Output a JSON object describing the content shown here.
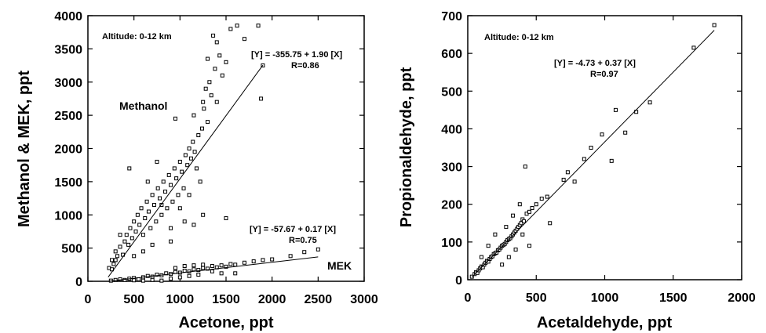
{
  "chart_data": [
    {
      "type": "scatter",
      "xlabel": "Acetone, ppt",
      "ylabel": "Methanol & MEK, ppt",
      "xlim": [
        0,
        3000
      ],
      "ylim": [
        0,
        4000
      ],
      "xticks": [
        0,
        500,
        1000,
        1500,
        2000,
        2500,
        3000
      ],
      "yticks": [
        0,
        500,
        1000,
        1500,
        2000,
        2500,
        3000,
        3500,
        4000
      ],
      "annotation": "Altitude: 0-12 km",
      "series": [
        {
          "name": "Methanol",
          "equation": "[Y] = -355.75 + 1.90 [X]",
          "r_label": "R=0.86",
          "fit": {
            "intercept": -355.75,
            "slope": 1.9,
            "x_range": [
              220,
              1900
            ]
          },
          "points": [
            [
              230,
              200
            ],
            [
              260,
              320
            ],
            [
              280,
              260
            ],
            [
              300,
              450
            ],
            [
              320,
              380
            ],
            [
              350,
              520
            ],
            [
              380,
              400
            ],
            [
              400,
              600
            ],
            [
              420,
              700
            ],
            [
              440,
              550
            ],
            [
              460,
              800
            ],
            [
              480,
              650
            ],
            [
              500,
              900
            ],
            [
              520,
              750
            ],
            [
              540,
              1000
            ],
            [
              560,
              850
            ],
            [
              580,
              1100
            ],
            [
              600,
              700
            ],
            [
              620,
              950
            ],
            [
              640,
              1200
            ],
            [
              660,
              1050
            ],
            [
              680,
              800
            ],
            [
              700,
              1300
            ],
            [
              720,
              1150
            ],
            [
              740,
              900
            ],
            [
              760,
              1400
            ],
            [
              780,
              1250
            ],
            [
              800,
              1000
            ],
            [
              820,
              1500
            ],
            [
              840,
              1350
            ],
            [
              860,
              1100
            ],
            [
              880,
              1600
            ],
            [
              900,
              1450
            ],
            [
              920,
              1200
            ],
            [
              940,
              1700
            ],
            [
              960,
              1550
            ],
            [
              980,
              1300
            ],
            [
              1000,
              1800
            ],
            [
              1020,
              1650
            ],
            [
              1040,
              1400
            ],
            [
              1060,
              1900
            ],
            [
              1080,
              1750
            ],
            [
              1100,
              2000
            ],
            [
              1120,
              1850
            ],
            [
              1140,
              2100
            ],
            [
              1160,
              1950
            ],
            [
              1180,
              1700
            ],
            [
              1200,
              2200
            ],
            [
              1220,
              1500
            ],
            [
              1240,
              2300
            ],
            [
              1260,
              2600
            ],
            [
              1280,
              2900
            ],
            [
              1300,
              2400
            ],
            [
              1320,
              3000
            ],
            [
              1340,
              2800
            ],
            [
              1360,
              3700
            ],
            [
              1380,
              3200
            ],
            [
              1400,
              2700
            ],
            [
              1430,
              3400
            ],
            [
              1460,
              3100
            ],
            [
              1500,
              950
            ],
            [
              1550,
              3800
            ],
            [
              1620,
              3850
            ],
            [
              1700,
              3650
            ],
            [
              1850,
              3850
            ],
            [
              1880,
              2750
            ],
            [
              1900,
              3250
            ],
            [
              600,
              450
            ],
            [
              700,
              550
            ],
            [
              500,
              380
            ],
            [
              900,
              800
            ],
            [
              1000,
              1100
            ],
            [
              1100,
              1300
            ],
            [
              800,
              1150
            ],
            [
              450,
              1700
            ],
            [
              300,
              320
            ],
            [
              260,
              180
            ],
            [
              350,
              700
            ],
            [
              650,
              1500
            ],
            [
              750,
              1800
            ],
            [
              950,
              2450
            ],
            [
              1150,
              2500
            ],
            [
              1250,
              2700
            ],
            [
              1300,
              3350
            ],
            [
              1250,
              1000
            ],
            [
              1150,
              850
            ],
            [
              1050,
              900
            ],
            [
              900,
              600
            ],
            [
              1400,
              3600
            ],
            [
              1500,
              3300
            ]
          ]
        },
        {
          "name": "MEK",
          "equation": "[Y] = -57.67 + 0.17 [X]",
          "r_label": "R=0.75",
          "fit": {
            "intercept": -57.67,
            "slope": 0.17,
            "x_range": [
              220,
              2500
            ]
          },
          "points": [
            [
              250,
              10
            ],
            [
              300,
              20
            ],
            [
              350,
              30
            ],
            [
              400,
              20
            ],
            [
              450,
              40
            ],
            [
              500,
              50
            ],
            [
              550,
              30
            ],
            [
              600,
              60
            ],
            [
              650,
              80
            ],
            [
              700,
              70
            ],
            [
              750,
              100
            ],
            [
              800,
              90
            ],
            [
              850,
              120
            ],
            [
              900,
              110
            ],
            [
              950,
              140
            ],
            [
              1000,
              130
            ],
            [
              1050,
              160
            ],
            [
              1100,
              150
            ],
            [
              1150,
              180
            ],
            [
              1200,
              170
            ],
            [
              1250,
              200
            ],
            [
              1300,
              190
            ],
            [
              1350,
              230
            ],
            [
              1400,
              210
            ],
            [
              1450,
              240
            ],
            [
              1500,
              220
            ],
            [
              1550,
              260
            ],
            [
              1600,
              250
            ],
            [
              1700,
              280
            ],
            [
              1800,
              300
            ],
            [
              1900,
              320
            ],
            [
              2000,
              330
            ],
            [
              2200,
              380
            ],
            [
              2350,
              440
            ],
            [
              2500,
              480
            ],
            [
              800,
              10
            ],
            [
              900,
              40
            ],
            [
              1000,
              60
            ],
            [
              1100,
              80
            ],
            [
              1200,
              100
            ],
            [
              700,
              20
            ],
            [
              600,
              10
            ],
            [
              500,
              15
            ],
            [
              950,
              200
            ],
            [
              1050,
              230
            ],
            [
              1150,
              240
            ],
            [
              1250,
              250
            ],
            [
              1350,
              150
            ],
            [
              1450,
              120
            ],
            [
              1600,
              120
            ]
          ]
        }
      ]
    },
    {
      "type": "scatter",
      "xlabel": "Acetaldehyde, ppt",
      "ylabel": "Propionaldehyde, ppt",
      "xlim": [
        0,
        2000
      ],
      "ylim": [
        0,
        700
      ],
      "xticks": [
        0,
        500,
        1000,
        1500,
        2000
      ],
      "yticks": [
        0,
        100,
        200,
        300,
        400,
        500,
        600,
        700
      ],
      "annotation": "Altitude: 0-12 km",
      "series": [
        {
          "equation": "[Y] = -4.73 + 0.37 [X]",
          "r_label": "R=0.97",
          "fit": {
            "intercept": -4.73,
            "slope": 0.37,
            "x_range": [
              30,
              1800
            ]
          },
          "points": [
            [
              30,
              8
            ],
            [
              50,
              15
            ],
            [
              60,
              20
            ],
            [
              70,
              18
            ],
            [
              80,
              25
            ],
            [
              90,
              30
            ],
            [
              100,
              35
            ],
            [
              110,
              33
            ],
            [
              120,
              40
            ],
            [
              130,
              45
            ],
            [
              140,
              50
            ],
            [
              150,
              48
            ],
            [
              160,
              55
            ],
            [
              170,
              60
            ],
            [
              180,
              62
            ],
            [
              190,
              68
            ],
            [
              200,
              70
            ],
            [
              210,
              72
            ],
            [
              220,
              78
            ],
            [
              230,
              80
            ],
            [
              240,
              85
            ],
            [
              250,
              90
            ],
            [
              260,
              92
            ],
            [
              270,
              95
            ],
            [
              280,
              100
            ],
            [
              290,
              105
            ],
            [
              300,
              108
            ],
            [
              310,
              110
            ],
            [
              320,
              115
            ],
            [
              330,
              120
            ],
            [
              340,
              125
            ],
            [
              350,
              130
            ],
            [
              360,
              135
            ],
            [
              370,
              140
            ],
            [
              380,
              145
            ],
            [
              390,
              150
            ],
            [
              400,
              160
            ],
            [
              410,
              155
            ],
            [
              430,
              175
            ],
            [
              450,
              180
            ],
            [
              470,
              190
            ],
            [
              500,
              200
            ],
            [
              540,
              215
            ],
            [
              580,
              220
            ],
            [
              600,
              150
            ],
            [
              450,
              90
            ],
            [
              420,
              300
            ],
            [
              700,
              265
            ],
            [
              730,
              285
            ],
            [
              780,
              260
            ],
            [
              850,
              320
            ],
            [
              900,
              350
            ],
            [
              980,
              385
            ],
            [
              1050,
              315
            ],
            [
              1080,
              450
            ],
            [
              1150,
              390
            ],
            [
              1230,
              445
            ],
            [
              1330,
              470
            ],
            [
              1650,
              615
            ],
            [
              1800,
              675
            ],
            [
              250,
              40
            ],
            [
              300,
              60
            ],
            [
              350,
              80
            ],
            [
              200,
              120
            ],
            [
              150,
              90
            ],
            [
              100,
              60
            ],
            [
              400,
              120
            ],
            [
              380,
              200
            ],
            [
              330,
              170
            ],
            [
              280,
              140
            ]
          ]
        }
      ]
    }
  ]
}
